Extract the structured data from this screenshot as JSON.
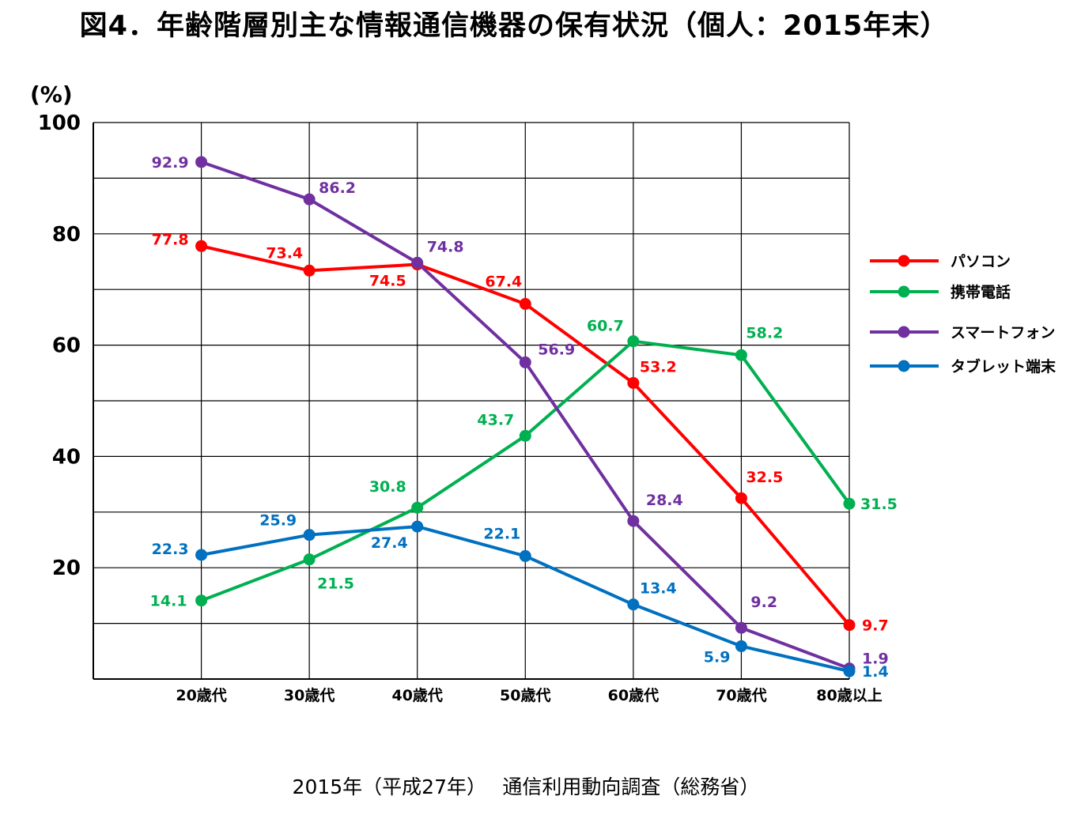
{
  "title": "図4．年齢階層別主な情報通信機器の保有状況（個人：2015年末）",
  "source": "2015年（平成27年）　 通信利用動向調査（総務省）",
  "chart_data": {
    "type": "line",
    "title": "図4．年齢階層別主な情報通信機器の保有状況（個人：2015年末）",
    "ylabel": "(%)",
    "ylim": [
      0,
      100
    ],
    "yticks": [
      20,
      40,
      60,
      80,
      100
    ],
    "grid": true,
    "legend_position": "right",
    "categories": [
      "20歳代",
      "30歳代",
      "40歳代",
      "50歳代",
      "60歳代",
      "70歳代",
      "80歳以上"
    ],
    "series": [
      {
        "name": "パソコン",
        "color": "#ff0000",
        "values": [
          77.8,
          73.4,
          74.5,
          67.4,
          53.2,
          32.5,
          9.7
        ]
      },
      {
        "name": "携帯電話",
        "color": "#00b050",
        "values": [
          14.1,
          21.5,
          30.8,
          43.7,
          60.7,
          58.2,
          31.5
        ]
      },
      {
        "name": "スマートフォン",
        "color": "#7030a0",
        "values": [
          92.9,
          86.2,
          74.8,
          56.9,
          28.4,
          9.2,
          1.9
        ]
      },
      {
        "name": "タブレット端末",
        "color": "#0070c0",
        "values": [
          22.3,
          25.9,
          27.4,
          22.1,
          13.4,
          5.9,
          1.4
        ]
      }
    ]
  }
}
